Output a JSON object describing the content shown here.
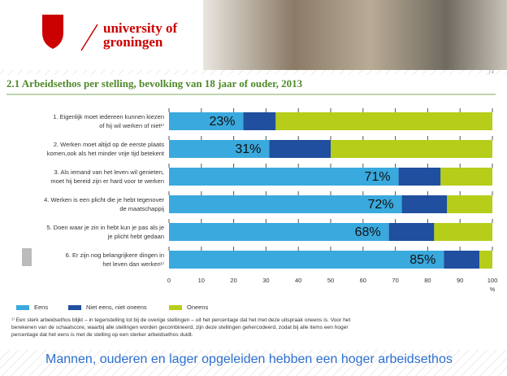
{
  "header": {
    "logo_lines": [
      "university of",
      "groningen"
    ],
    "page_number": "| 4"
  },
  "chart_data": {
    "type": "stacked-bar-horizontal",
    "title": "2.1  Arbeidsethos per stelling, bevolking van 18 jaar of ouder, 2013",
    "categories": [
      [
        "1. Eigenlijk moet iedereen kunnen kiezen",
        "of hij wil werken of niet¹⁾"
      ],
      [
        "2. Werken moet altijd op de eerste plaats",
        "komen,ook als het minder vrije tijd betekent"
      ],
      [
        "3. Als iemand van het leven wil genieten,",
        "moet hij bereid zijn er hard voor te werken"
      ],
      [
        "4. Werken is een plicht die je hebt tegenover",
        "de maatschappij"
      ],
      [
        "5. Doen waar je zin in hebt kun je pas als je",
        "je plicht hebt gedaan"
      ],
      [
        "6. Er zijn nog belangrijkere dingen in",
        "het leven dan werken¹⁾"
      ]
    ],
    "series": [
      {
        "name": "Eens",
        "color": "#3aa9dd",
        "values": [
          23,
          31,
          71,
          72,
          68,
          85
        ],
        "value_labels": [
          "23%",
          "31%",
          "71%",
          "72%",
          "68%",
          "85%"
        ]
      },
      {
        "name": "Niet eens, niet oneens",
        "color": "#1f4f9e",
        "values": [
          10,
          19,
          13,
          14,
          14,
          11
        ]
      },
      {
        "name": "Oneens",
        "color": "#b6cd1a",
        "values": [
          67,
          50,
          16,
          14,
          18,
          4
        ]
      }
    ],
    "xlim": [
      0,
      100
    ],
    "xticks": [
      0,
      10,
      20,
      30,
      40,
      50,
      60,
      70,
      80,
      90,
      100
    ],
    "x_unit": "%",
    "footnote": [
      "¹⁾ Een sterk arbeidsethos blijkt – in tegenstelling tot bij de overige stellingen – uit het percentage dat het met deze uitspraak oneens is. Voor het",
      "berekenen van de schaalscore, waarbij alle stellingen worden gecombineerd, zijn deze stellingen gehercodeerd, zodat bij alle items een hoger",
      "percentage dat het eens is met de stelling op een sterker arbeidsethos duidt."
    ]
  },
  "caption": "Mannen, ouderen en lager opgeleiden hebben een hoger arbeidsethos"
}
